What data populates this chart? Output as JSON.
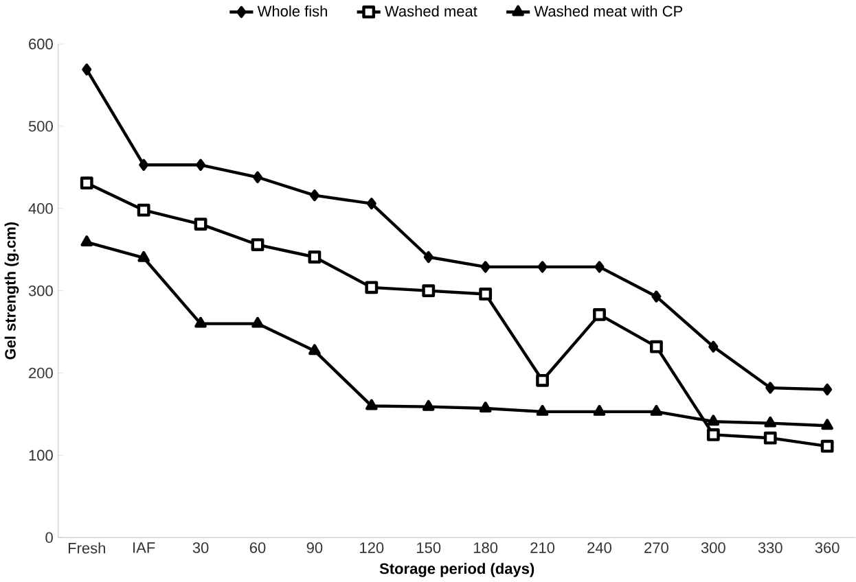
{
  "chart_data": {
    "type": "line",
    "xlabel": "Storage period (days)",
    "ylabel": "Gel strength (g.cm)",
    "categories": [
      "Fresh",
      "IAF",
      "30",
      "60",
      "90",
      "120",
      "150",
      "180",
      "210",
      "240",
      "270",
      "300",
      "330",
      "360"
    ],
    "ylim": [
      0,
      600
    ],
    "yticks": [
      0,
      100,
      200,
      300,
      400,
      500,
      600
    ],
    "grid": false,
    "legend": "top",
    "line_style": "solid",
    "series": [
      {
        "name": "Whole fish",
        "color": "#000000",
        "marker": "diamond",
        "values": [
          569,
          453,
          453,
          438,
          416,
          406,
          341,
          329,
          329,
          329,
          293,
          232,
          182,
          180
        ]
      },
      {
        "name": "Washed meat",
        "color": "#000000",
        "marker": "square",
        "values": [
          431,
          398,
          381,
          356,
          341,
          304,
          300,
          296,
          191,
          271,
          232,
          125,
          121,
          111
        ]
      },
      {
        "name": "Washed meat with CP",
        "color": "#000000",
        "marker": "triangle",
        "values": [
          359,
          340,
          260,
          260,
          227,
          160,
          159,
          157,
          153,
          153,
          153,
          141,
          139,
          136
        ]
      }
    ]
  }
}
